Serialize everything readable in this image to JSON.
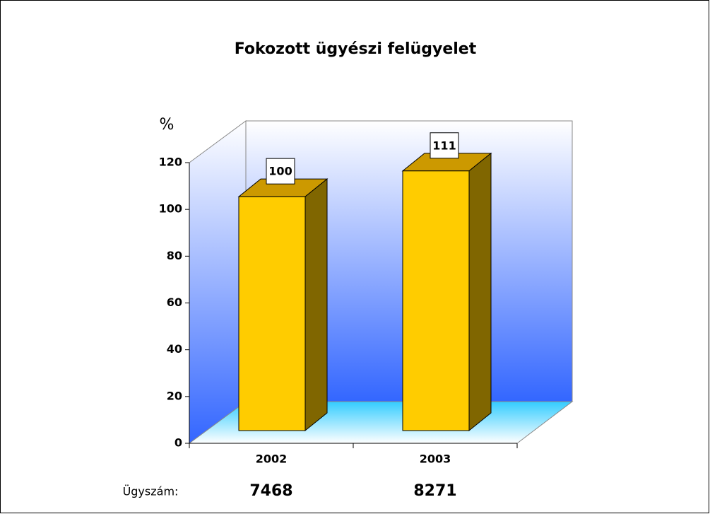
{
  "chart_data": {
    "type": "bar3d",
    "title": "Fokozott  ügyészi felügyelet",
    "y_label": "%",
    "categories": [
      "2002",
      "2003"
    ],
    "values": [
      100,
      111
    ],
    "color": "#ffcc00",
    "ylim": [
      0,
      120
    ],
    "yticks": [
      0,
      20,
      40,
      60,
      80,
      100,
      120
    ],
    "grid": false,
    "case_counts": {
      "label": "Ügyszám:",
      "values": [
        7468,
        8271
      ]
    }
  }
}
